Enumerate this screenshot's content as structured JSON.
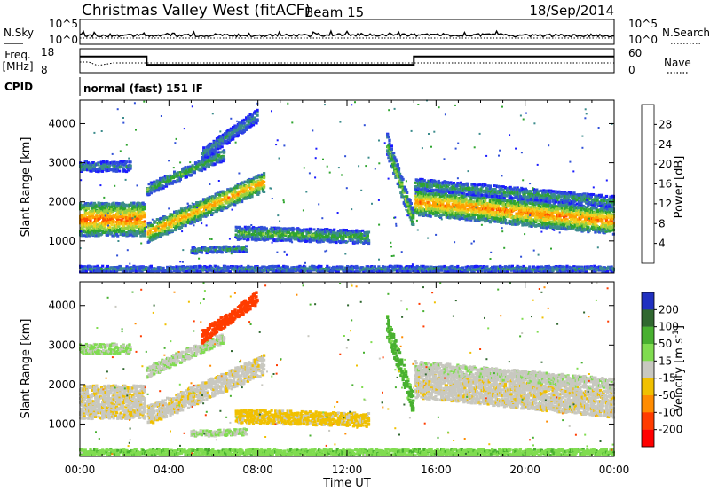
{
  "header": {
    "title": "Christmas Valley West (fitACF)",
    "beam": "Beam 15",
    "date": "18/Sep/2014"
  },
  "noise_panel": {
    "left_label": "N.Sky",
    "right_label": "N.Search",
    "ticks": [
      "10^5",
      "10^0"
    ],
    "right_ticks": [
      "10^5",
      "10^0"
    ]
  },
  "freq_panel": {
    "left_label_1": "Freq.",
    "left_label_2": "[MHz]",
    "left_ticks": [
      "18",
      "8"
    ],
    "right_label": "Nave",
    "right_ticks": [
      "60",
      "0"
    ],
    "freq_steps": [
      [
        0,
        14.8
      ],
      [
        3.0,
        14.8
      ],
      [
        3.0,
        10.3
      ],
      [
        15.0,
        10.3
      ],
      [
        15.0,
        14.8
      ],
      [
        24,
        14.8
      ]
    ]
  },
  "cpid": {
    "label": "CPID",
    "text": "normal (fast) 151 IF"
  },
  "x_axis": {
    "ticks": [
      "00:00",
      "04:00",
      "08:00",
      "12:00",
      "16:00",
      "20:00",
      "00:00"
    ],
    "label": "Time UT",
    "range_hours": [
      0,
      24
    ]
  },
  "power_panel": {
    "ylabel": "Slant Range [km]",
    "yticks": [
      "1000",
      "2000",
      "3000",
      "4000"
    ],
    "ylim": [
      180,
      4600
    ],
    "colorbar_label": "Power [dB]",
    "colorbar_ticks": [
      "4",
      "8",
      "12",
      "16",
      "20",
      "24",
      "28"
    ],
    "colorbar_range": [
      0,
      32
    ],
    "colors": [
      "#1a1aff",
      "#3050d8",
      "#3c8c8c",
      "#2fa52f",
      "#98d040",
      "#f0d020",
      "#ffa000",
      "#ff5000",
      "#ff0000"
    ]
  },
  "velocity_panel": {
    "ylabel": "Slant Range [km]",
    "yticks": [
      "1000",
      "2000",
      "3000",
      "4000"
    ],
    "ylim": [
      180,
      4600
    ],
    "colorbar_label": "Velocity [m s^-1]",
    "colorbar_ticks": [
      "200",
      "100",
      "50",
      "15",
      "-15",
      "-50",
      "-100",
      "-200"
    ],
    "colors": [
      "#2030c0",
      "#306830",
      "#48b030",
      "#80dc50",
      "#c8c8c0",
      "#f0c000",
      "#ff8c00",
      "#ff3c00",
      "#ff0000"
    ]
  },
  "chart_data": {
    "type": "heatmap",
    "title": "Christmas Valley West (fitACF)",
    "xlabel": "Time UT",
    "ylabel": "Slant Range [km]",
    "xlim": [
      0,
      24
    ],
    "ylim": [
      180,
      4600
    ],
    "echo_bands": [
      {
        "t0": 0.0,
        "t1": 2.95,
        "center": [
          1550,
          1550
        ],
        "width": 650,
        "power": 26,
        "velocity": -5
      },
      {
        "t0": 0.0,
        "t1": 2.3,
        "center": [
          2900,
          2900
        ],
        "width": 200,
        "power": 10,
        "velocity": 20
      },
      {
        "t0": 3.05,
        "t1": 8.3,
        "center": [
          1200,
          2500
        ],
        "width": 380,
        "power": 24,
        "velocity": -5
      },
      {
        "t0": 3.0,
        "t1": 6.5,
        "center": [
          2300,
          3200
        ],
        "width": 220,
        "power": 14,
        "velocity": 10
      },
      {
        "t0": 5.5,
        "t1": 8.0,
        "center": [
          3200,
          4200
        ],
        "width": 250,
        "power": 10,
        "velocity": -180
      },
      {
        "t0": 5.0,
        "t1": 7.5,
        "center": [
          750,
          800
        ],
        "width": 120,
        "power": 12,
        "velocity": 15
      },
      {
        "t0": 7.0,
        "t1": 13.0,
        "center": [
          1200,
          1100
        ],
        "width": 260,
        "power": 14,
        "velocity": -25
      },
      {
        "t0": 13.8,
        "t1": 15.0,
        "center": [
          3500,
          1500
        ],
        "width": 420,
        "power": 16,
        "velocity": 60
      },
      {
        "t0": 15.05,
        "t1": 24.0,
        "center": [
          2000,
          1500
        ],
        "width": 520,
        "power": 25,
        "velocity": -5
      },
      {
        "t0": 15.05,
        "t1": 24.0,
        "center": [
          2450,
          2000
        ],
        "width": 220,
        "power": 12,
        "velocity": 5
      },
      {
        "t0": 0.0,
        "t1": 24.0,
        "center": [
          280,
          280
        ],
        "width": 120,
        "power": 10,
        "velocity": 40
      }
    ]
  }
}
